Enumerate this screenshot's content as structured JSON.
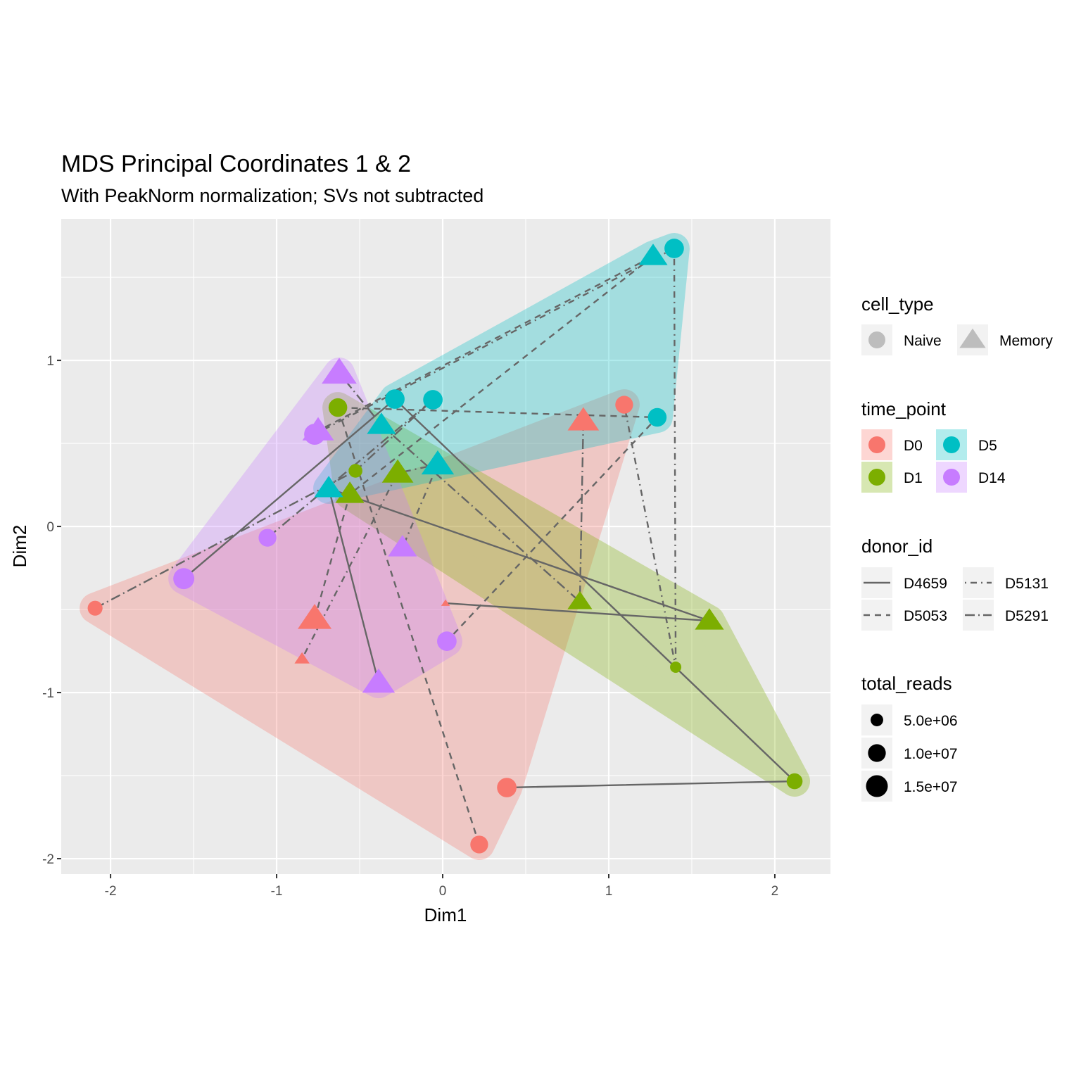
{
  "chart_data": {
    "type": "scatter",
    "title": "MDS Principal Coordinates 1 & 2",
    "subtitle": "With PeakNorm normalization; SVs not subtracted",
    "xlabel": "Dim1",
    "ylabel": "Dim2",
    "xlim": [
      -2.297,
      2.335
    ],
    "ylim": [
      -2.093,
      1.852
    ],
    "x_ticks": [
      "-2",
      "-1",
      "0",
      "1",
      "2"
    ],
    "x_tick_values": [
      -2,
      -1,
      0,
      1,
      2
    ],
    "y_ticks": [
      "-2",
      "-1",
      "0",
      "1"
    ],
    "y_tick_values": [
      -2,
      -1,
      0,
      1
    ],
    "grid": true,
    "legend_position": "right",
    "colors": {
      "D0": "#F8766D",
      "D1": "#7CAE00",
      "D5": "#00BFC4",
      "D14": "#C77CFF"
    },
    "line_color": "#666666",
    "time_order": [
      "D0",
      "D1",
      "D5",
      "D14"
    ],
    "points": [
      {
        "time_point": "D0",
        "cell_type": "Naive",
        "donor_id": "D4659",
        "x": 0.386,
        "y": -1.572,
        "total_reads": 12000000
      },
      {
        "time_point": "D0",
        "cell_type": "Naive",
        "donor_id": "D5053",
        "x": 0.22,
        "y": -1.915,
        "total_reads": 10000000
      },
      {
        "time_point": "D0",
        "cell_type": "Naive",
        "donor_id": "D5131",
        "x": 1.093,
        "y": 0.733,
        "total_reads": 10000000
      },
      {
        "time_point": "D0",
        "cell_type": "Naive",
        "donor_id": "D5291",
        "x": -2.093,
        "y": -0.492,
        "total_reads": 7000000
      },
      {
        "time_point": "D0",
        "cell_type": "Memory",
        "donor_id": "D4659",
        "x": 0.017,
        "y": -0.462,
        "total_reads": 1000000
      },
      {
        "time_point": "D0",
        "cell_type": "Memory",
        "donor_id": "D5053",
        "x": -0.771,
        "y": -0.555,
        "total_reads": 15000000
      },
      {
        "time_point": "D0",
        "cell_type": "Memory",
        "donor_id": "D5131",
        "x": -0.847,
        "y": -0.797,
        "total_reads": 3000000
      },
      {
        "time_point": "D0",
        "cell_type": "Memory",
        "donor_id": "D5291",
        "x": 0.847,
        "y": 0.636,
        "total_reads": 13000000
      },
      {
        "time_point": "D1",
        "cell_type": "Naive",
        "donor_id": "D4659",
        "x": 2.119,
        "y": -1.534,
        "total_reads": 8000000
      },
      {
        "time_point": "D1",
        "cell_type": "Naive",
        "donor_id": "D5053",
        "x": -0.631,
        "y": 0.716,
        "total_reads": 11000000
      },
      {
        "time_point": "D1",
        "cell_type": "Naive",
        "donor_id": "D5131",
        "x": 1.403,
        "y": -0.847,
        "total_reads": 4000000
      },
      {
        "time_point": "D1",
        "cell_type": "Naive",
        "donor_id": "D5291",
        "x": -0.525,
        "y": 0.335,
        "total_reads": 6000000
      },
      {
        "time_point": "D1",
        "cell_type": "Memory",
        "donor_id": "D4659",
        "x": 1.606,
        "y": -0.568,
        "total_reads": 11000000
      },
      {
        "time_point": "D1",
        "cell_type": "Memory",
        "donor_id": "D5053",
        "x": -0.559,
        "y": 0.195,
        "total_reads": 11000000
      },
      {
        "time_point": "D1",
        "cell_type": "Memory",
        "donor_id": "D5131",
        "x": -0.271,
        "y": 0.322,
        "total_reads": 13000000
      },
      {
        "time_point": "D1",
        "cell_type": "Memory",
        "donor_id": "D5291",
        "x": 0.826,
        "y": -0.453,
        "total_reads": 8000000
      },
      {
        "time_point": "D5",
        "cell_type": "Naive",
        "donor_id": "D4659",
        "x": -0.288,
        "y": 0.767,
        "total_reads": 12000000
      },
      {
        "time_point": "D5",
        "cell_type": "Naive",
        "donor_id": "D5053",
        "x": 1.292,
        "y": 0.657,
        "total_reads": 11000000
      },
      {
        "time_point": "D5",
        "cell_type": "Naive",
        "donor_id": "D5131",
        "x": 1.394,
        "y": 1.674,
        "total_reads": 12000000
      },
      {
        "time_point": "D5",
        "cell_type": "Naive",
        "donor_id": "D5291",
        "x": -0.059,
        "y": 0.763,
        "total_reads": 12000000
      },
      {
        "time_point": "D5",
        "cell_type": "Memory",
        "donor_id": "D4659",
        "x": -0.686,
        "y": 0.229,
        "total_reads": 11000000
      },
      {
        "time_point": "D5",
        "cell_type": "Memory",
        "donor_id": "D5053",
        "x": 1.267,
        "y": 1.627,
        "total_reads": 11000000
      },
      {
        "time_point": "D5",
        "cell_type": "Memory",
        "donor_id": "D5131",
        "x": -0.03,
        "y": 0.373,
        "total_reads": 14000000
      },
      {
        "time_point": "D5",
        "cell_type": "Memory",
        "donor_id": "D5291",
        "x": -0.369,
        "y": 0.61,
        "total_reads": 11000000
      },
      {
        "time_point": "D14",
        "cell_type": "Naive",
        "donor_id": "D4659",
        "x": -1.559,
        "y": -0.314,
        "total_reads": 14000000
      },
      {
        "time_point": "D14",
        "cell_type": "Naive",
        "donor_id": "D5053",
        "x": 0.025,
        "y": -0.691,
        "total_reads": 12000000
      },
      {
        "time_point": "D14",
        "cell_type": "Naive",
        "donor_id": "D5131",
        "x": -0.771,
        "y": 0.555,
        "total_reads": 14000000
      },
      {
        "time_point": "D14",
        "cell_type": "Naive",
        "donor_id": "D5291",
        "x": -1.055,
        "y": -0.068,
        "total_reads": 10000000
      },
      {
        "time_point": "D14",
        "cell_type": "Memory",
        "donor_id": "D4659",
        "x": -0.386,
        "y": -0.941,
        "total_reads": 14000000
      },
      {
        "time_point": "D14",
        "cell_type": "Memory",
        "donor_id": "D5053",
        "x": -0.75,
        "y": 0.576,
        "total_reads": 13000000
      },
      {
        "time_point": "D14",
        "cell_type": "Memory",
        "donor_id": "D5131",
        "x": -0.242,
        "y": -0.127,
        "total_reads": 11000000
      },
      {
        "time_point": "D14",
        "cell_type": "Memory",
        "donor_id": "D5291",
        "x": -0.623,
        "y": 0.924,
        "total_reads": 16000000
      }
    ],
    "legend": {
      "cell_type": {
        "title": "cell_type",
        "items": [
          "Naive",
          "Memory"
        ]
      },
      "time_point": {
        "title": "time_point",
        "items": [
          "D0",
          "D5",
          "D1",
          "D14"
        ]
      },
      "donor_id": {
        "title": "donor_id",
        "items": [
          "D4659",
          "D5131",
          "D5053",
          "D5291"
        ]
      },
      "total_reads": {
        "title": "total_reads",
        "items": [
          "5.0e+06",
          "1.0e+07",
          "1.5e+07"
        ],
        "values": [
          5000000,
          10000000,
          15000000
        ]
      }
    }
  }
}
